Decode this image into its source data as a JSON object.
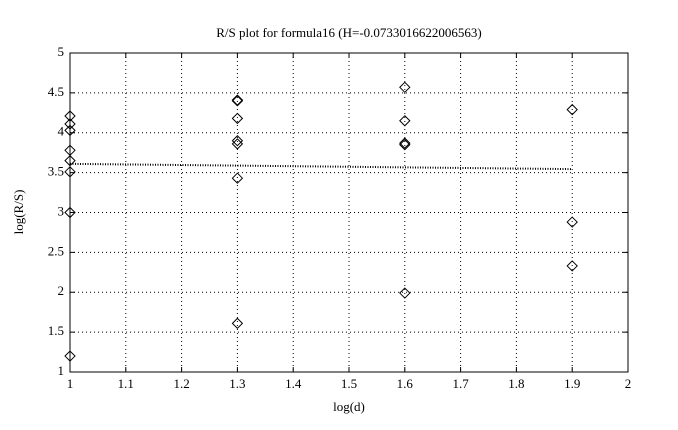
{
  "chart_data": {
    "type": "scatter",
    "title": "R/S plot for formula16 (H=-0.0733016622006563)",
    "x_label": "log(d)",
    "y_label": "log(R/S)",
    "xlim": [
      1,
      2
    ],
    "ylim": [
      1,
      5
    ],
    "xticks": [
      1,
      1.1,
      1.2,
      1.3,
      1.4,
      1.5,
      1.6,
      1.7,
      1.8,
      1.9,
      2
    ],
    "yticks": [
      1,
      1.5,
      2,
      2.5,
      3,
      3.5,
      4,
      4.5,
      5
    ],
    "grid": true,
    "series": [
      {
        "style": "diamond",
        "color": "#000000",
        "x": [
          1,
          1,
          1,
          1,
          1,
          1,
          1,
          1,
          1.3,
          1.3,
          1.3,
          1.3,
          1.3,
          1.3,
          1.3,
          1.6,
          1.6,
          1.6,
          1.6,
          1.6,
          1.9,
          1.9,
          1.9
        ],
        "values": [
          4.21,
          4.11,
          4.03,
          3.78,
          3.65,
          3.51,
          3.0,
          1.2,
          4.41,
          4.4,
          4.18,
          3.9,
          3.86,
          3.43,
          1.61,
          4.57,
          4.15,
          3.87,
          3.85,
          1.99,
          4.29,
          2.88,
          2.33
        ]
      },
      {
        "style": "dotted-line",
        "color": "#000000",
        "x": [
          1,
          1.9
        ],
        "values": [
          3.61,
          3.544
        ]
      }
    ]
  }
}
